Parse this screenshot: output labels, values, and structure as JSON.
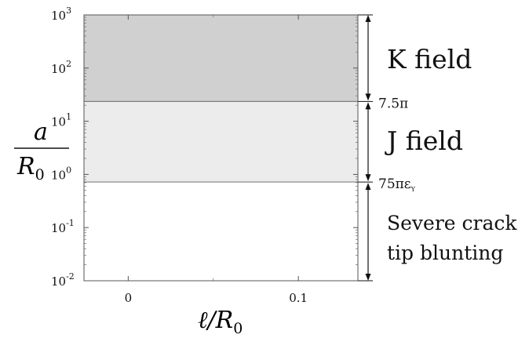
{
  "chart_data": {
    "type": "area",
    "yscale": "log",
    "ylim": [
      0.01,
      1000
    ],
    "xlim": [
      -0.026,
      0.135
    ],
    "x_ticks": [
      {
        "value": 0,
        "label": "0"
      },
      {
        "value": 0.1,
        "label": "0.1"
      }
    ],
    "x_minor_ticks": [
      0.05
    ],
    "y_ticks": [
      {
        "value": 0.01,
        "base": "10",
        "exp": "-2"
      },
      {
        "value": 0.1,
        "base": "10",
        "exp": "-1"
      },
      {
        "value": 1,
        "base": "10",
        "exp": "0"
      },
      {
        "value": 10,
        "base": "10",
        "exp": "1"
      },
      {
        "value": 100,
        "base": "10",
        "exp": "2"
      },
      {
        "value": 1000,
        "base": "10",
        "exp": "3"
      }
    ],
    "xlabel": {
      "main": "ℓ/R",
      "sub": "0"
    },
    "ylabel": {
      "numerator": "a",
      "den_main": "R",
      "den_sub": "0"
    },
    "grid": false,
    "regions": [
      {
        "name": "K field",
        "y_from": 23.56,
        "y_to": 1000,
        "color": "#d0d0d0"
      },
      {
        "name": "J field",
        "y_from": 0.72,
        "y_to": 23.56,
        "color": "#ececec"
      },
      {
        "name": "Severe crack",
        "name_line2": "tip blunting",
        "y_from": 0.01,
        "y_to": 0.72,
        "color": "#ffffff"
      }
    ],
    "thresholds": [
      {
        "value": 23.56,
        "label": "7.5π"
      },
      {
        "value": 0.72,
        "label": "75πε",
        "label_sub": "Y"
      }
    ],
    "line_color": "#7f7f7f"
  }
}
